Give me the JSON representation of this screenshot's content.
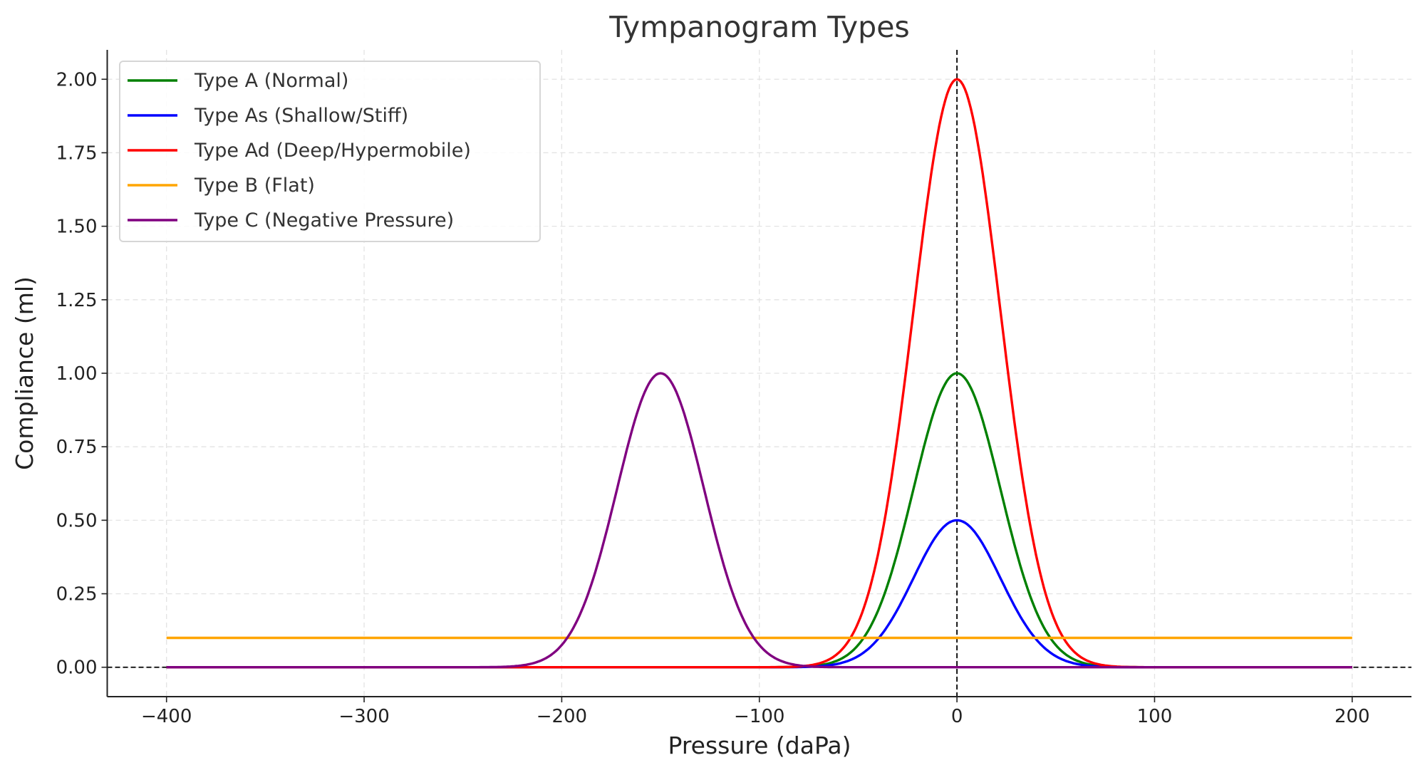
{
  "chart_data": {
    "type": "line",
    "title": "Tympanogram Types",
    "xlabel": "Pressure (daPa)",
    "ylabel": "Compliance (ml)",
    "xlim": [
      -430,
      230
    ],
    "ylim": [
      -0.1,
      2.1
    ],
    "xticks": [
      -400,
      -300,
      -200,
      -100,
      0,
      100,
      200
    ],
    "xtick_labels": [
      "−400",
      "−300",
      "−200",
      "−100",
      "0",
      "100",
      "200"
    ],
    "yticks": [
      0,
      0.25,
      0.5,
      0.75,
      1.0,
      1.25,
      1.5,
      1.75,
      2.0
    ],
    "ytick_labels": [
      "0.00",
      "0.25",
      "0.50",
      "0.75",
      "1.00",
      "1.25",
      "1.50",
      "1.75",
      "2.00"
    ],
    "grid": true,
    "legend_position": "top-left",
    "x_range": [
      -400,
      200
    ],
    "reference_lines": [
      {
        "orientation": "horizontal",
        "value": 0,
        "style": "dashed",
        "color": "#000000"
      },
      {
        "orientation": "vertical",
        "value": 0,
        "style": "dashed",
        "color": "#000000"
      }
    ],
    "series": [
      {
        "name": "Type A (Normal)",
        "color": "#008000",
        "shape": "gaussian",
        "peak_pressure": 0,
        "peak_compliance": 1.0,
        "sd": 22
      },
      {
        "name": "Type As (Shallow/Stiff)",
        "color": "#0000ff",
        "shape": "gaussian",
        "peak_pressure": 0,
        "peak_compliance": 0.5,
        "sd": 22
      },
      {
        "name": "Type Ad (Deep/Hypermobile)",
        "color": "#ff0000",
        "shape": "gaussian",
        "peak_pressure": 0,
        "peak_compliance": 2.0,
        "sd": 22
      },
      {
        "name": "Type B (Flat)",
        "color": "#ffa500",
        "shape": "flat",
        "value": 0.1
      },
      {
        "name": "Type C (Negative Pressure)",
        "color": "#800080",
        "shape": "gaussian",
        "peak_pressure": -150,
        "peak_compliance": 1.0,
        "sd": 22
      }
    ]
  }
}
